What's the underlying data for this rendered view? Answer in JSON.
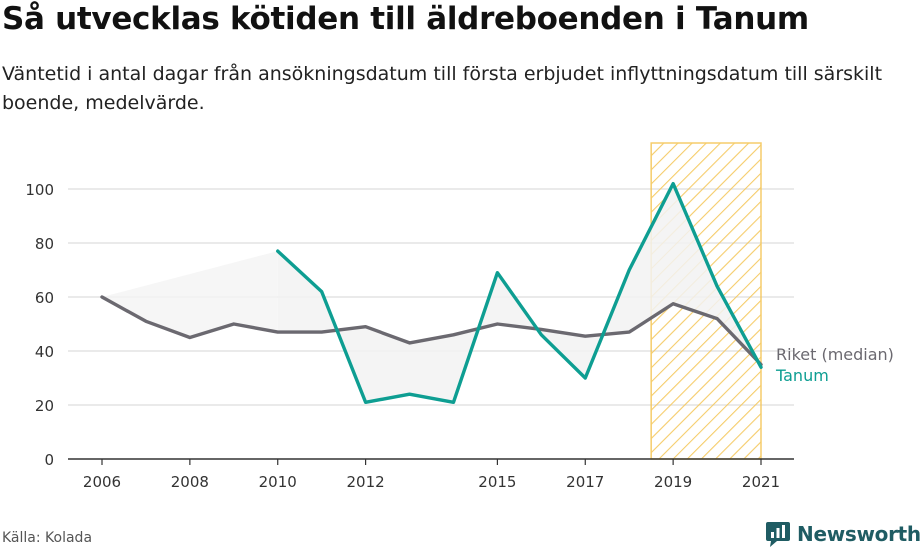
{
  "title": "Så utvecklas kötiden till äldreboenden i Tanum",
  "subtitle": "Väntetid i antal dagar från ansökningsdatum till första erbjudet inflyttningsdatum till särskilt boende, medelvärde.",
  "source": "Källa: Kolada",
  "brand": {
    "name": "Newsworthy",
    "icon": "newsworthy-chart-bubble-icon"
  },
  "colors": {
    "riket": "#6b6970",
    "tanum": "#0e9e92",
    "highlight": "#f5c75a",
    "grid": "#dddddd"
  },
  "chart_data": {
    "type": "line",
    "x_ticks": [
      2006,
      2008,
      2010,
      2012,
      2015,
      2017,
      2019,
      2021
    ],
    "y_ticks": [
      0,
      20,
      40,
      60,
      80,
      100
    ],
    "xlim": [
      2006,
      2021
    ],
    "ylim": [
      0,
      100
    ],
    "grid": true,
    "highlight_range": [
      2018.5,
      2021
    ],
    "series": [
      {
        "name": "Riket (median)",
        "x": [
          2006,
          2007,
          2008,
          2009,
          2010,
          2011,
          2012,
          2013,
          2014,
          2015,
          2016,
          2017,
          2018,
          2019,
          2020,
          2021
        ],
        "values": [
          60,
          51,
          45,
          50,
          47,
          47,
          49,
          43,
          46,
          50,
          48,
          45.5,
          47,
          57.5,
          52,
          35
        ],
        "color": "#6b6970"
      },
      {
        "name": "Tanum",
        "x": [
          2010,
          2011,
          2012,
          2013,
          2014,
          2015,
          2016,
          2017,
          2018,
          2019,
          2020,
          2021
        ],
        "values": [
          77,
          62,
          21,
          24,
          21,
          69,
          46,
          30,
          70,
          102,
          64,
          34
        ],
        "color": "#0e9e92"
      }
    ]
  }
}
